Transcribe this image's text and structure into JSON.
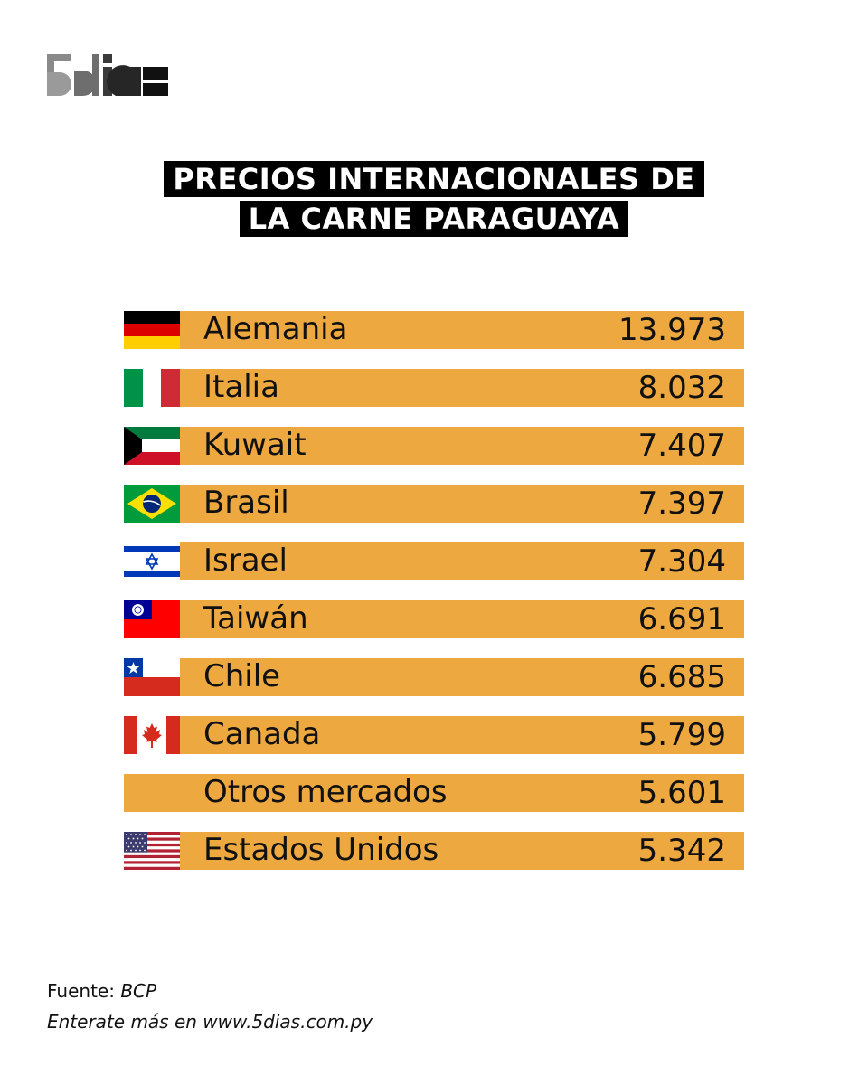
{
  "brand": {
    "logo_text": "5días"
  },
  "title": {
    "line1": "PRECIOS INTERNACIONALES DE",
    "line2": "LA CARNE PARAGUAYA"
  },
  "colors": {
    "bar": "#eea840",
    "title_bg": "#000000",
    "text": "#111111"
  },
  "chart_data": {
    "type": "bar",
    "orientation": "horizontal",
    "title": "PRECIOS INTERNACIONALES DE LA CARNE PARAGUAYA",
    "categories": [
      "Alemania",
      "Italia",
      "Kuwait",
      "Brasil",
      "Israel",
      "Taiwán",
      "Chile",
      "Canada",
      "Otros mercados",
      "Estados Unidos"
    ],
    "value_labels": [
      "13.973",
      "8.032",
      "7.407",
      "7.397",
      "7.304",
      "6.691",
      "6.685",
      "5.799",
      "5.601",
      "5.342"
    ],
    "values": [
      13973,
      8032,
      7407,
      7397,
      7304,
      6691,
      6685,
      5799,
      5601,
      5342
    ],
    "flags": [
      "germany-flag-icon",
      "italy-flag-icon",
      "kuwait-flag-icon",
      "brazil-flag-icon",
      "israel-flag-icon",
      "taiwan-flag-icon",
      "chile-flag-icon",
      "canada-flag-icon",
      "",
      "usa-flag-icon"
    ]
  },
  "footer": {
    "source_label": "Fuente:",
    "source_value": "BCP",
    "more_info": "Enterate más en www.5dias.com.py"
  }
}
